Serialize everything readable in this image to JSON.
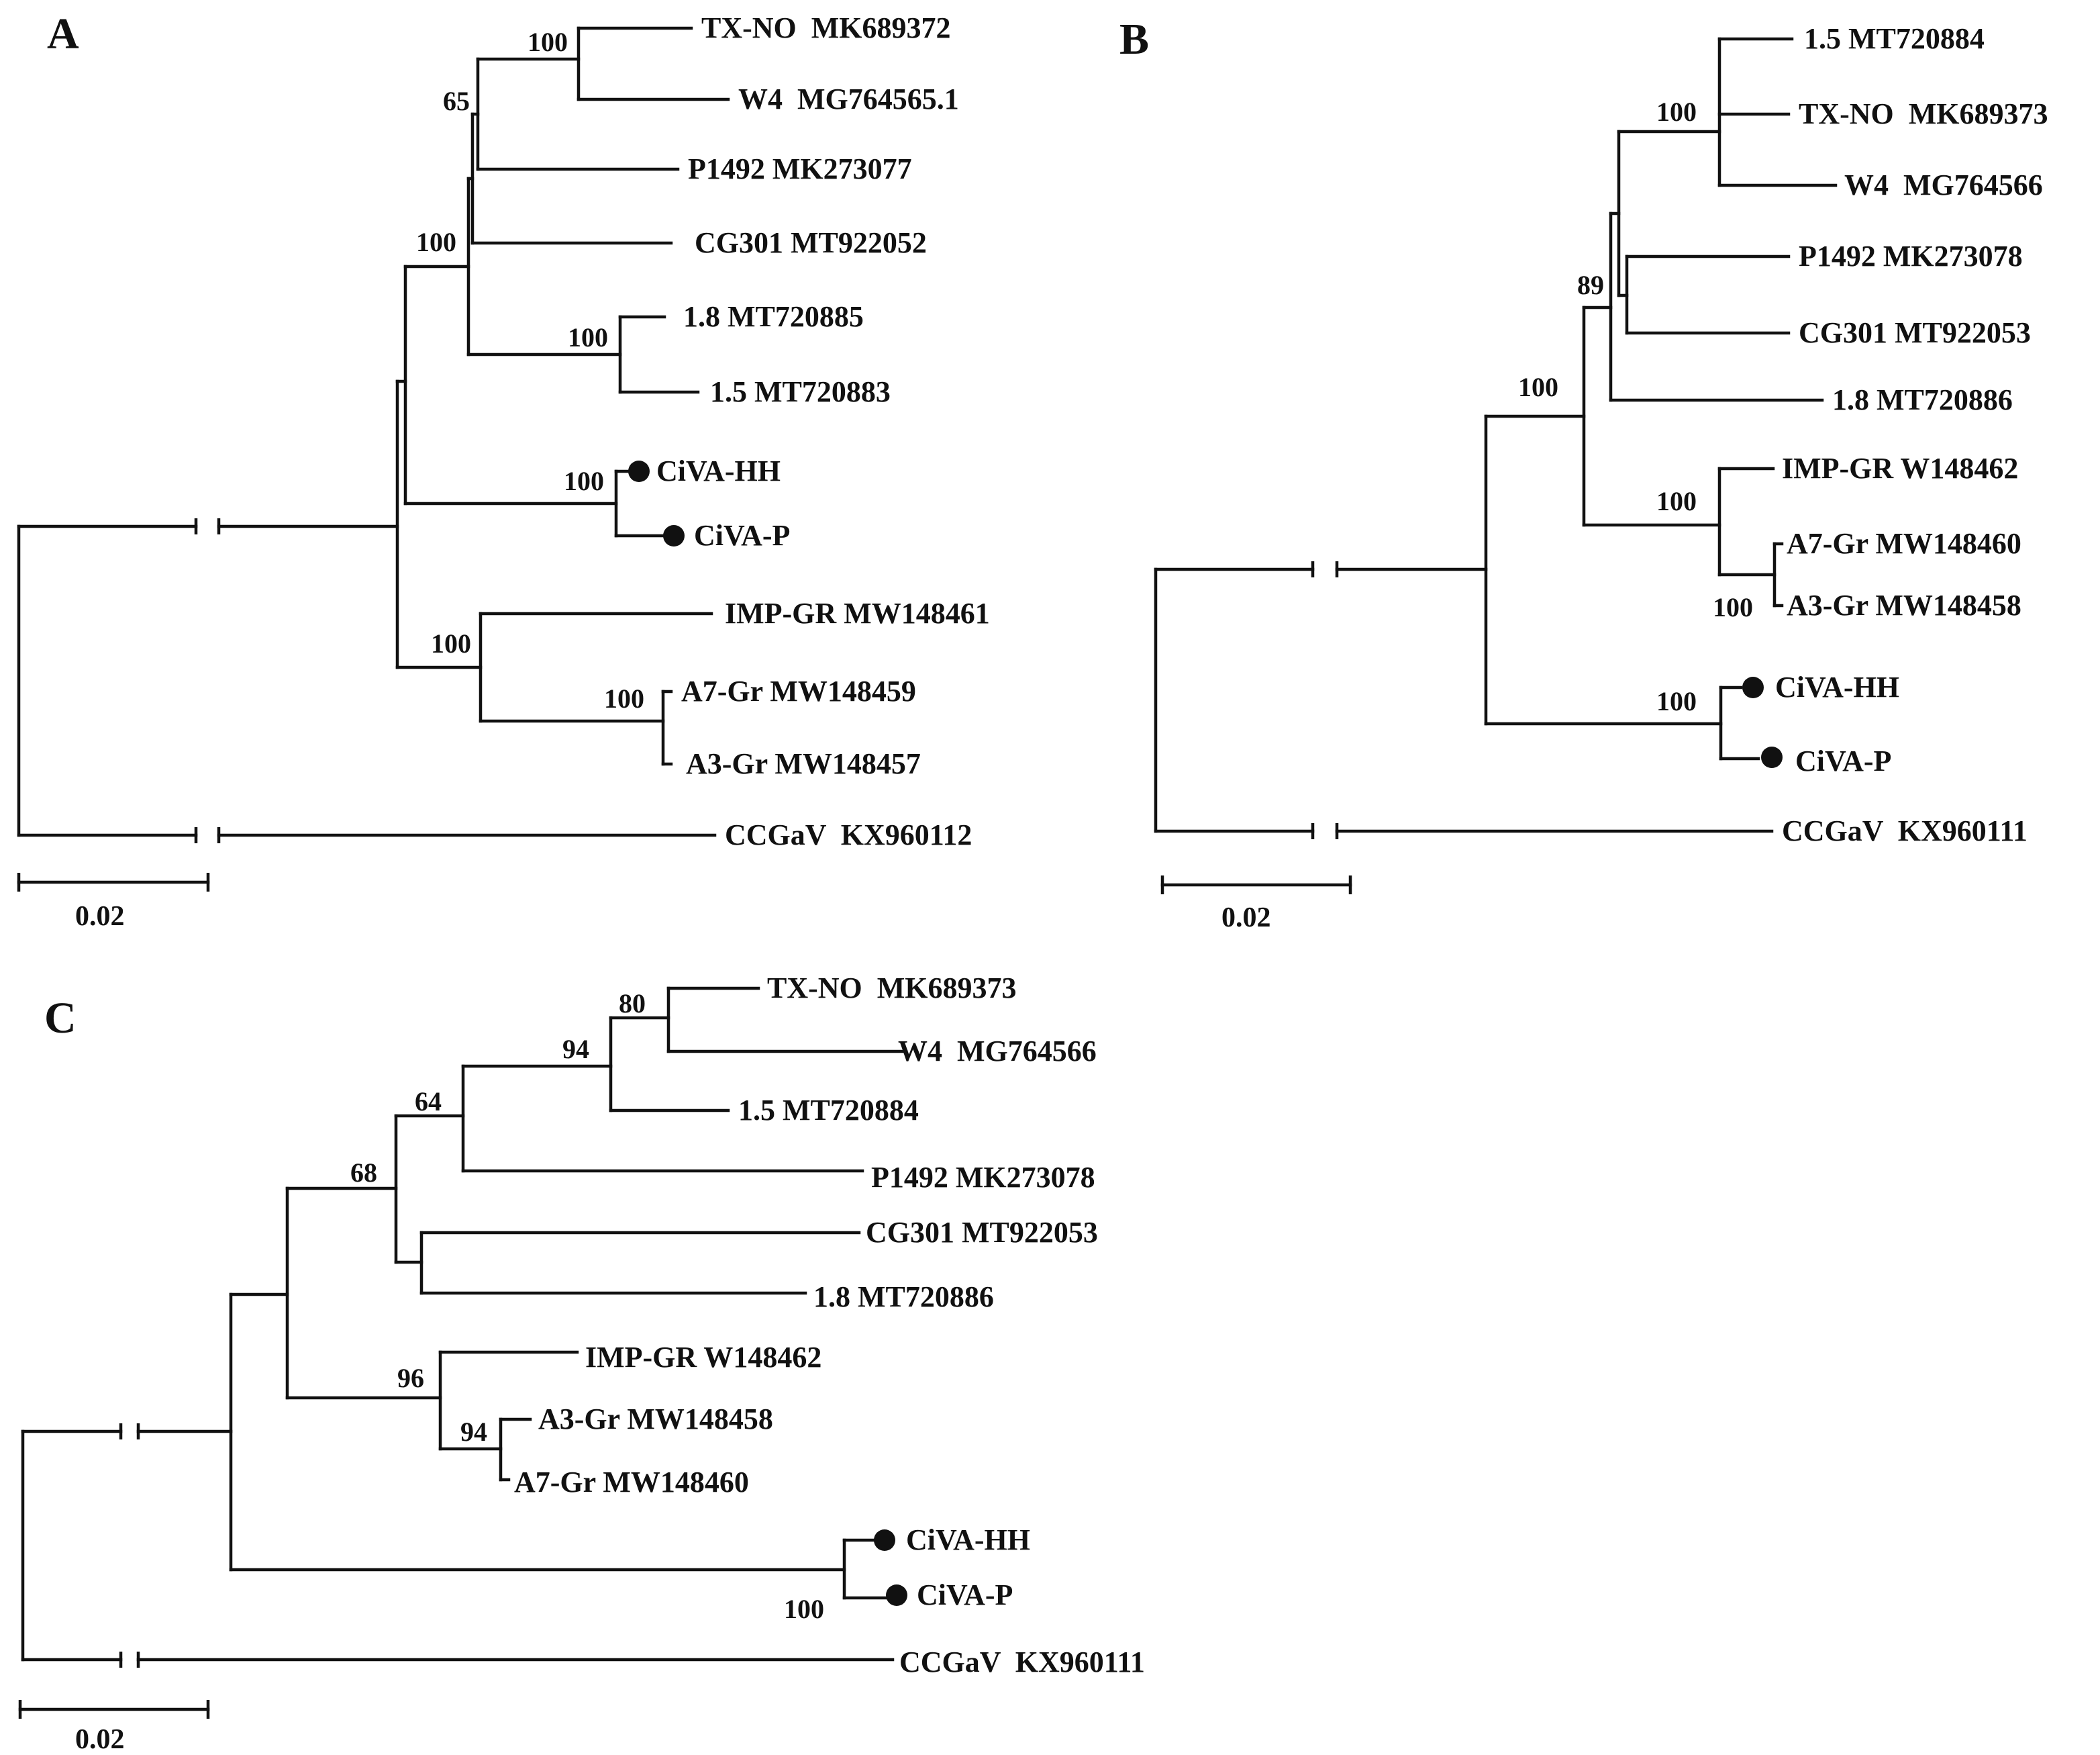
{
  "figure": {
    "panels": [
      {
        "id": "A",
        "label": "A",
        "leaves": [
          {
            "name": "TX-NO  MK689372",
            "highlighted": false
          },
          {
            "name": "W4  MG764565.1",
            "highlighted": false
          },
          {
            "name": "P1492 MK273077",
            "highlighted": false
          },
          {
            "name": "CG301 MT922052",
            "highlighted": false
          },
          {
            "name": "1.8 MT720885",
            "highlighted": false
          },
          {
            "name": "1.5 MT720883",
            "highlighted": false
          },
          {
            "name": "CiVA-HH",
            "highlighted": true
          },
          {
            "name": "CiVA-P",
            "highlighted": true
          },
          {
            "name": "IMP-GR MW148461",
            "highlighted": false
          },
          {
            "name": "A7-Gr MW148459",
            "highlighted": false
          },
          {
            "name": "A3-Gr MW148457",
            "highlighted": false
          },
          {
            "name": "CCGaV  KX960112",
            "highlighted": false
          }
        ],
        "support_values": [
          "100",
          "65",
          "100",
          "100",
          "100",
          "100",
          "100"
        ],
        "scale_bar": {
          "value": 0.02,
          "label": "0.02"
        }
      },
      {
        "id": "B",
        "label": "B",
        "leaves": [
          {
            "name": "1.5 MT720884",
            "highlighted": false
          },
          {
            "name": "TX-NO  MK689373",
            "highlighted": false
          },
          {
            "name": "W4  MG764566",
            "highlighted": false
          },
          {
            "name": "P1492 MK273078",
            "highlighted": false
          },
          {
            "name": "CG301 MT922053",
            "highlighted": false
          },
          {
            "name": "1.8 MT720886",
            "highlighted": false
          },
          {
            "name": "IMP-GR W148462",
            "highlighted": false
          },
          {
            "name": "A7-Gr MW148460",
            "highlighted": false
          },
          {
            "name": "A3-Gr MW148458",
            "highlighted": false
          },
          {
            "name": "CiVA-HH",
            "highlighted": true
          },
          {
            "name": "CiVA-P",
            "highlighted": true
          },
          {
            "name": "CCGaV  KX960111",
            "highlighted": false
          }
        ],
        "support_values": [
          "100",
          "89",
          "100",
          "100",
          "100",
          "100"
        ],
        "scale_bar": {
          "value": 0.02,
          "label": "0.02"
        }
      },
      {
        "id": "C",
        "label": "C",
        "leaves": [
          {
            "name": "TX-NO  MK689373",
            "highlighted": false
          },
          {
            "name": "W4  MG764566",
            "highlighted": false
          },
          {
            "name": "1.5 MT720884",
            "highlighted": false
          },
          {
            "name": "P1492 MK273078",
            "highlighted": false
          },
          {
            "name": "CG301 MT922053",
            "highlighted": false
          },
          {
            "name": "1.8 MT720886",
            "highlighted": false
          },
          {
            "name": "IMP-GR W148462",
            "highlighted": false
          },
          {
            "name": "A3-Gr MW148458",
            "highlighted": false
          },
          {
            "name": "A7-Gr MW148460",
            "highlighted": false
          },
          {
            "name": "CiVA-HH",
            "highlighted": true
          },
          {
            "name": "CiVA-P",
            "highlighted": true
          },
          {
            "name": "CCGaV  KX960111",
            "highlighted": false
          }
        ],
        "support_values": [
          "80",
          "94",
          "64",
          "68",
          "96",
          "94",
          "100"
        ],
        "scale_bar": {
          "value": 0.02,
          "label": "0.02"
        }
      }
    ]
  }
}
